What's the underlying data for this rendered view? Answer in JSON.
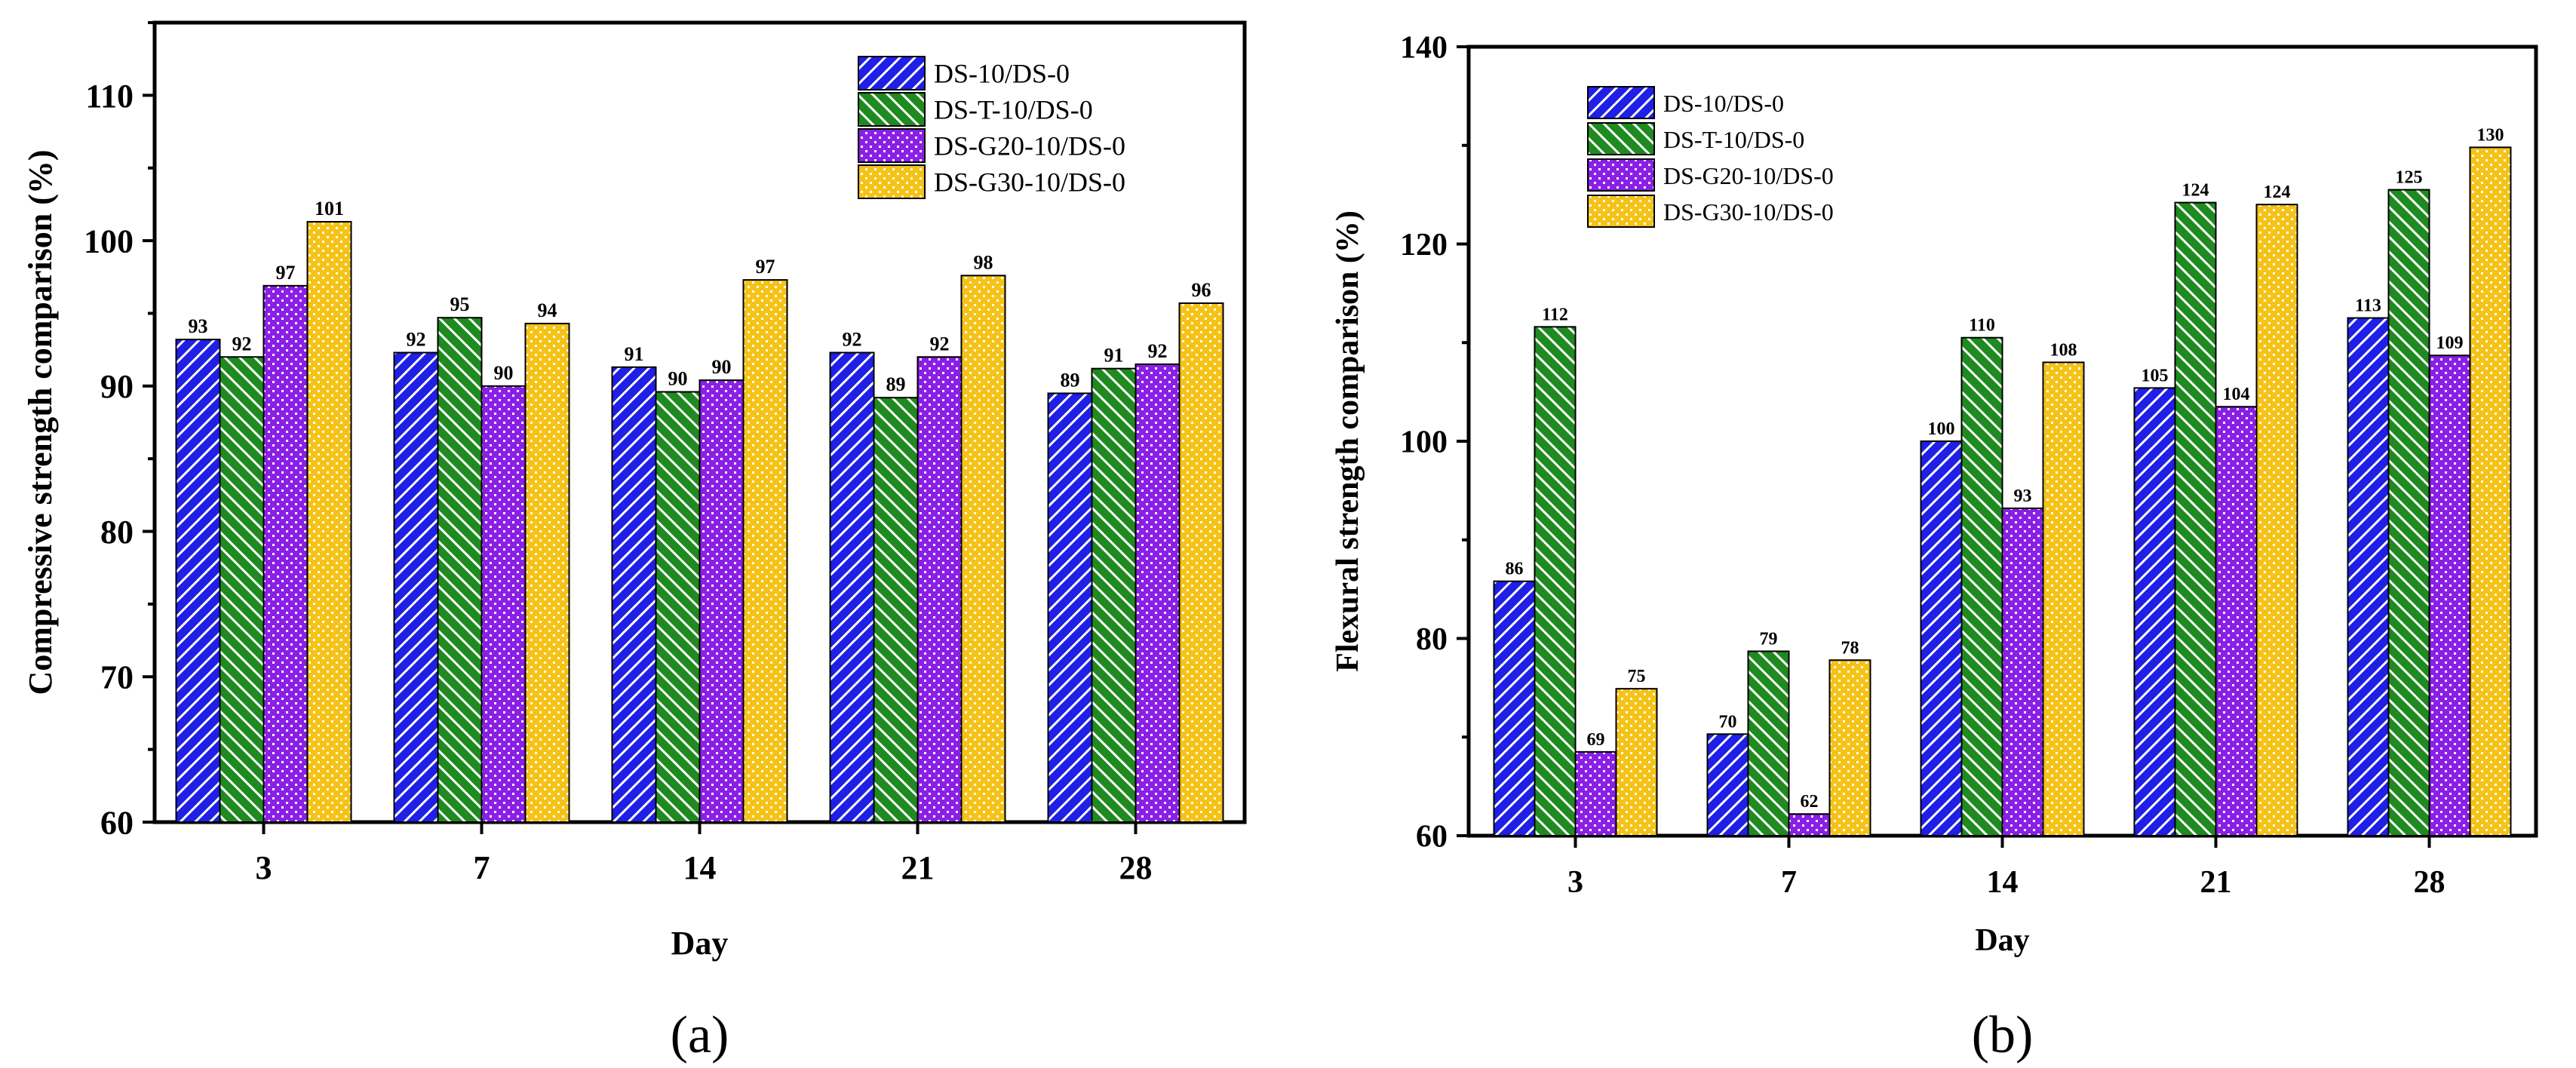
{
  "colors": {
    "blue": "#1f1fe6",
    "green": "#1f8a1f",
    "purple": "#8a1fe6",
    "yellow": "#f5c318",
    "axis": "#000000"
  },
  "chart_data": [
    {
      "type": "bar",
      "panel_label": "(a)",
      "xlabel": "Day",
      "ylabel": "Compressive strength comparison (%)",
      "ylim": [
        60,
        115
      ],
      "yticks": [
        60,
        70,
        80,
        90,
        100,
        110
      ],
      "categories": [
        "3",
        "7",
        "14",
        "21",
        "28"
      ],
      "legend_position": "top-right",
      "series": [
        {
          "name": "DS-10/DS-0",
          "values": [
            93.2,
            92.3,
            91.3,
            92.3,
            89.5
          ],
          "labels": [
            "93",
            "92",
            "91",
            "92",
            "89"
          ]
        },
        {
          "name": "DS-T-10/DS-0",
          "values": [
            92.0,
            94.7,
            89.6,
            89.2,
            91.2
          ],
          "labels": [
            "92",
            "95",
            "90",
            "89",
            "91"
          ]
        },
        {
          "name": "DS-G20-10/DS-0",
          "values": [
            96.9,
            90.0,
            90.4,
            92.0,
            91.5
          ],
          "labels": [
            "97",
            "90",
            "90",
            "92",
            "92"
          ]
        },
        {
          "name": "DS-G30-10/DS-0",
          "values": [
            101.3,
            94.3,
            97.3,
            97.6,
            95.7
          ],
          "labels": [
            "101",
            "94",
            "97",
            "98",
            "96"
          ]
        }
      ]
    },
    {
      "type": "bar",
      "panel_label": "(b)",
      "xlabel": "Day",
      "ylabel": "Flexural strength comparison (%)",
      "ylim": [
        60,
        140
      ],
      "yticks": [
        60,
        80,
        100,
        120,
        140
      ],
      "categories": [
        "3",
        "7",
        "14",
        "21",
        "28"
      ],
      "legend_position": "top-left",
      "series": [
        {
          "name": "DS-10/DS-0",
          "values": [
            85.8,
            70.3,
            100.0,
            105.4,
            112.5
          ],
          "labels": [
            "86",
            "70",
            "100",
            "105",
            "113"
          ]
        },
        {
          "name": "DS-T-10/DS-0",
          "values": [
            111.6,
            78.7,
            110.5,
            124.2,
            125.5
          ],
          "labels": [
            "112",
            "79",
            "110",
            "124",
            "125"
          ]
        },
        {
          "name": "DS-G20-10/DS-0",
          "values": [
            68.5,
            62.2,
            93.2,
            103.5,
            108.7
          ],
          "labels": [
            "69",
            "62",
            "93",
            "104",
            "109"
          ]
        },
        {
          "name": "DS-G30-10/DS-0",
          "values": [
            74.9,
            77.8,
            108.0,
            124.0,
            129.8
          ],
          "labels": [
            "75",
            "78",
            "108",
            "124",
            "130"
          ]
        }
      ]
    }
  ]
}
